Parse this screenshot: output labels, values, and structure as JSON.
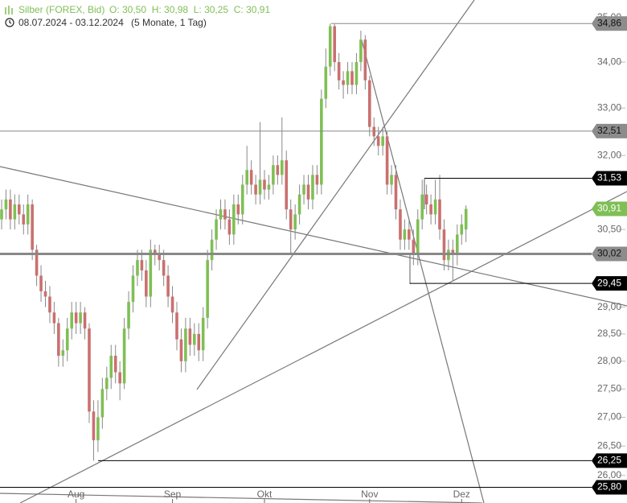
{
  "chart_data": {
    "type": "candlestick",
    "title": "Silber (FOREX, Bid)",
    "quote": "O: 30,50  H: 30,98  L: 30,25  C: 30,91",
    "subtitle": "08.07.2024 - 03.12.2024",
    "period": "(5 Monate, 1 Tag)",
    "log_scale": true,
    "up_color": "#7fbf55",
    "down_color": "#c9706f",
    "wick_color": "#888888",
    "categories": [
      null,
      null,
      null,
      null,
      null,
      null,
      null,
      null,
      null,
      null,
      null,
      null,
      null,
      null,
      null,
      null,
      null,
      "Aug",
      null,
      null,
      null,
      null,
      null,
      null,
      null,
      null,
      null,
      null,
      null,
      null,
      null,
      null,
      null,
      null,
      null,
      null,
      null,
      null,
      null,
      "Sep",
      null,
      null,
      null,
      null,
      null,
      null,
      null,
      null,
      null,
      null,
      null,
      null,
      null,
      null,
      null,
      null,
      null,
      null,
      null,
      null,
      "Okt",
      null,
      null,
      null,
      null,
      null,
      null,
      null,
      null,
      null,
      null,
      null,
      null,
      null,
      null,
      null,
      null,
      null,
      null,
      null,
      null,
      null,
      null,
      null,
      "Nov",
      null,
      null,
      null,
      null,
      null,
      null,
      null,
      null,
      null,
      null,
      null,
      null,
      null,
      null,
      null,
      null,
      null,
      null,
      null,
      null,
      "Dez",
      null
    ],
    "open": [
      30.7,
      30.9,
      31.1,
      30.7,
      31.0,
      30.8,
      30.6,
      31.0,
      30.1,
      29.6,
      29.3,
      29.2,
      28.9,
      28.7,
      28.1,
      28.2,
      28.6,
      28.9,
      28.7,
      28.9,
      28.6,
      27.1,
      26.6,
      27.0,
      27.5,
      27.7,
      28.1,
      27.8,
      27.6,
      28.6,
      29.1,
      29.6,
      29.9,
      29.7,
      29.2,
      30.1,
      30.0,
      29.9,
      29.6,
      29.2,
      28.9,
      28.4,
      28.0,
      28.6,
      28.3,
      28.5,
      28.2,
      28.8,
      29.9,
      30.3,
      30.7,
      30.9,
      30.7,
      30.4,
      31.0,
      30.8,
      31.4,
      31.7,
      31.4,
      31.2,
      31.5,
      31.3,
      31.4,
      31.8,
      31.6,
      31.9,
      30.9,
      30.5,
      30.8,
      31.2,
      31.4,
      31.1,
      31.6,
      31.4,
      33.2,
      33.9,
      34.8,
      34.0,
      33.6,
      33.5,
      33.8,
      33.5,
      34.0,
      34.5,
      33.6,
      32.6,
      32.4,
      32.2,
      32.4,
      31.4,
      31.6,
      30.9,
      30.3,
      30.5,
      30.3,
      30.0,
      30.7,
      31.2,
      31.0,
      30.8,
      31.1,
      30.5,
      29.9,
      30.1,
      30.0,
      30.4,
      30.5
    ],
    "high": [
      31.1,
      31.3,
      31.3,
      31.2,
      31.2,
      31.0,
      31.2,
      31.1,
      30.2,
      29.8,
      29.5,
      29.4,
      29.1,
      28.8,
      28.4,
      28.8,
      29.1,
      29.1,
      29.1,
      29.0,
      28.7,
      27.3,
      27.3,
      27.7,
      27.9,
      28.3,
      28.3,
      28.0,
      28.8,
      29.3,
      29.8,
      30.1,
      30.1,
      29.9,
      30.3,
      30.2,
      30.2,
      30.1,
      29.8,
      29.4,
      29.1,
      28.6,
      28.8,
      28.8,
      28.7,
      28.7,
      29.0,
      30.1,
      30.5,
      30.9,
      31.1,
      31.1,
      30.9,
      31.2,
      31.2,
      31.6,
      32.2,
      31.9,
      31.6,
      32.7,
      31.7,
      31.6,
      32.0,
      32.0,
      32.8,
      32.1,
      31.1,
      31.0,
      31.4,
      31.6,
      31.6,
      31.8,
      31.8,
      33.4,
      34.3,
      34.86,
      34.85,
      34.2,
      33.8,
      34.0,
      34.0,
      34.2,
      34.7,
      34.6,
      33.7,
      32.8,
      32.6,
      32.6,
      32.5,
      31.8,
      31.8,
      31.1,
      30.7,
      30.7,
      30.5,
      30.9,
      31.5,
      31.4,
      31.2,
      31.5,
      31.6,
      30.7,
      30.3,
      30.3,
      30.6,
      30.8,
      30.98
    ],
    "low": [
      30.5,
      30.7,
      30.5,
      30.5,
      30.6,
      30.4,
      30.4,
      29.9,
      29.4,
      29.1,
      29.0,
      28.7,
      28.5,
      27.9,
      27.9,
      28.0,
      28.4,
      28.5,
      28.5,
      28.4,
      26.9,
      26.25,
      26.4,
      26.8,
      27.3,
      27.5,
      27.6,
      27.3,
      27.5,
      28.4,
      28.9,
      29.4,
      29.5,
      29.0,
      29.0,
      29.8,
      29.7,
      29.4,
      29.0,
      28.7,
      28.2,
      27.8,
      27.8,
      28.1,
      28.1,
      28.0,
      28.0,
      28.6,
      29.7,
      30.1,
      30.5,
      30.5,
      30.2,
      30.2,
      30.6,
      30.6,
      31.2,
      31.2,
      31.0,
      31.0,
      31.1,
      31.1,
      31.2,
      31.4,
      31.4,
      30.7,
      30.0,
      30.3,
      30.6,
      31.0,
      30.9,
      30.9,
      31.2,
      31.2,
      33.0,
      33.7,
      33.8,
      33.4,
      33.2,
      33.3,
      33.3,
      33.3,
      33.8,
      33.4,
      32.4,
      32.2,
      32.0,
      32.0,
      31.2,
      31.2,
      30.7,
      30.1,
      30.1,
      30.1,
      29.8,
      29.8,
      30.5,
      30.8,
      30.6,
      30.6,
      30.3,
      29.7,
      29.7,
      29.5,
      29.8,
      30.2,
      30.25
    ],
    "close": [
      30.9,
      31.1,
      30.7,
      31.0,
      30.8,
      30.6,
      31.0,
      30.1,
      29.6,
      29.3,
      29.2,
      28.9,
      28.7,
      28.1,
      28.2,
      28.6,
      28.9,
      28.7,
      28.9,
      28.6,
      27.1,
      26.6,
      27.0,
      27.5,
      27.7,
      28.1,
      27.8,
      27.6,
      28.6,
      29.1,
      29.6,
      29.9,
      29.7,
      29.2,
      30.1,
      30.0,
      29.9,
      29.6,
      29.2,
      28.9,
      28.4,
      28.0,
      28.6,
      28.3,
      28.5,
      28.2,
      28.8,
      29.9,
      30.3,
      30.7,
      30.9,
      30.7,
      30.4,
      31.0,
      30.8,
      31.4,
      31.7,
      31.4,
      31.2,
      31.5,
      31.3,
      31.4,
      31.8,
      31.6,
      31.9,
      30.9,
      30.5,
      30.8,
      31.2,
      31.4,
      31.1,
      31.6,
      31.4,
      33.2,
      33.9,
      34.8,
      34.0,
      33.6,
      33.5,
      33.8,
      33.5,
      34.0,
      34.5,
      33.6,
      32.6,
      32.4,
      32.2,
      32.4,
      31.4,
      31.6,
      30.9,
      30.3,
      30.5,
      30.3,
      30.0,
      30.7,
      31.2,
      31.0,
      30.8,
      31.1,
      30.5,
      29.9,
      30.1,
      30.0,
      30.4,
      30.6,
      30.91
    ],
    "ylim": [
      25.78,
      35.25
    ],
    "yticks": [
      {
        "value": 26,
        "label": "26,00"
      },
      {
        "value": 26.5,
        "label": "26,50"
      },
      {
        "value": 27,
        "label": "27,00"
      },
      {
        "value": 27.5,
        "label": "27,50"
      },
      {
        "value": 28,
        "label": "28,00"
      },
      {
        "value": 28.5,
        "label": "28,50"
      },
      {
        "value": 29,
        "label": "29,00"
      },
      {
        "value": 30.5,
        "label": "30,50"
      },
      {
        "value": 32,
        "label": "32,00"
      },
      {
        "value": 33,
        "label": "33,00"
      },
      {
        "value": 34,
        "label": "34,00"
      },
      {
        "value": 35,
        "label": "35,00"
      }
    ],
    "levels": [
      {
        "value": 34.86,
        "label": "34,86",
        "color": "#8c8c8c"
      },
      {
        "value": 32.51,
        "label": "32,51",
        "color": "#8c8c8c"
      },
      {
        "value": 31.53,
        "label": "31,53",
        "color": "#000000"
      },
      {
        "value": 30.91,
        "label": "30,91",
        "color": "#7fbf55"
      },
      {
        "value": 30.02,
        "label": "30,02",
        "color": "#8c8c8c"
      },
      {
        "value": 29.45,
        "label": "29,45",
        "color": "#000000"
      },
      {
        "value": 26.25,
        "label": "26,25",
        "color": "#000000"
      },
      {
        "value": 25.8,
        "label": "25,80",
        "color": "#000000"
      }
    ]
  }
}
